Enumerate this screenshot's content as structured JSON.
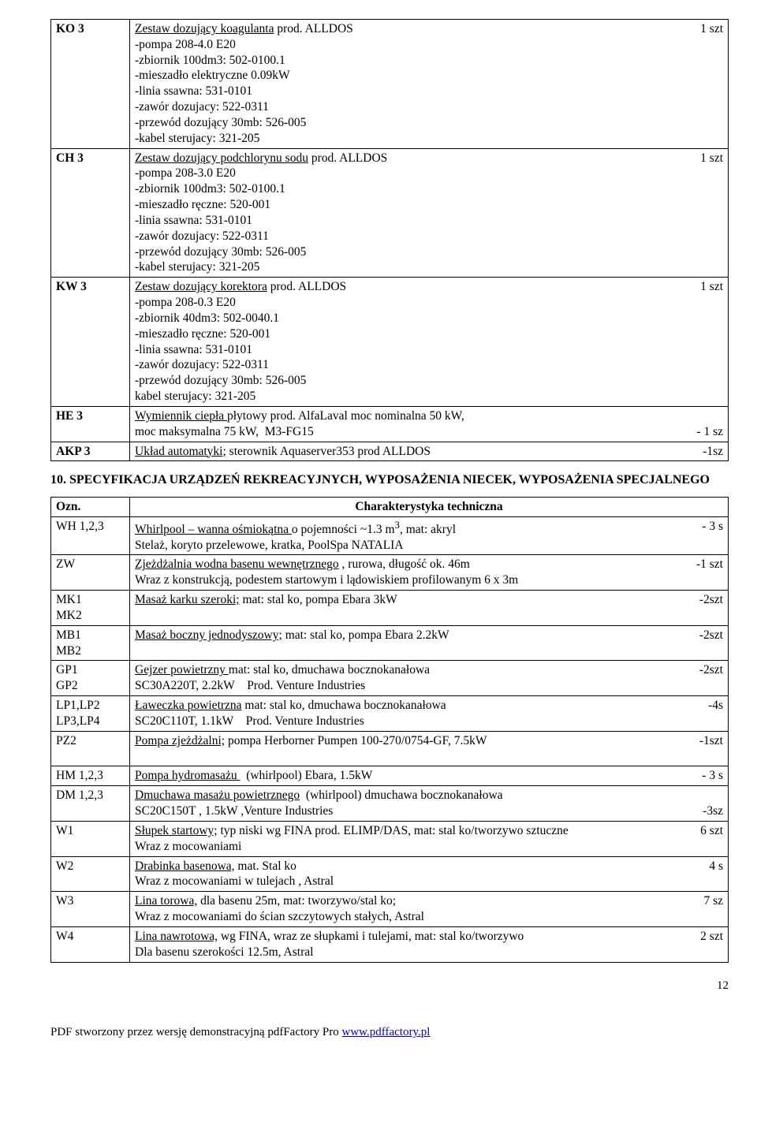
{
  "tbl1": [
    {
      "ozn": "KO 3",
      "html": "<span class='u'>Zestaw dozujący koagulanta</span> prod. ALLDOS <span class='rt'>1 szt</span><br>-pompa 208-4.0 E20<br>-zbiornik 100dm3: 502-0100.1<br>-mieszadło elektryczne 0.09kW<br>-linia ssawna: 531-0101<br>-zawór dozujacy: 522-0311<br>-przewód dozujący 30mb: 526-005<br>-kabel sterujacy: 321-205"
    },
    {
      "ozn": "CH 3",
      "html": "<span class='u'>Zestaw dozujący podchlorynu sodu</span> prod. ALLDOS <span class='rt'>1 szt</span><br>-pompa 208-3.0 E20<br>-zbiornik 100dm3: 502-0100.1<br>-mieszadło ręczne: 520-001<br>-linia ssawna: 531-0101<br>-zawór dozujacy: 522-0311<br>-przewód dozujący 30mb: 526-005<br>-kabel sterujacy: 321-205"
    },
    {
      "ozn": "KW 3",
      "html": "<span class='u'>Zestaw dozujący korektora</span> prod. ALLDOS <span class='rt'>1 szt</span><br>-pompa 208-0.3 E20<br>-zbiornik 40dm3: 502-0040.1<br>-mieszadło ręczne: 520-001<br>-linia ssawna: 531-0101<br>-zawór dozujacy: 522-0311<br>-przewód dozujący 30mb: 526-005<br>kabel sterujacy: 321-205"
    },
    {
      "ozn": "HE 3",
      "html": "<span class='u'>Wymiennik ciepła </span> płytowy prod. AlfaLaval moc nominalna 50 kW,<br>moc maksymalna 75 kW,&nbsp; M3-FG15 <span class='rt'>- 1 sz</span>"
    },
    {
      "ozn": "AKP 3",
      "html": "<span class='u'>Układ automatyki;</span> sterownik Aquaserver353 prod ALLDOS <span class='rt'>-1sz</span>"
    }
  ],
  "section_title": "10. SPECYFIKACJA URZĄDZEŃ REKREACYJNYCH, WYPOSAŻENIA NIECEK, WYPOSAŻENIA SPECJALNEGO",
  "tbl2_header": {
    "ozn": "Ozn.",
    "desc": "Charakterystyka techniczna"
  },
  "tbl2": [
    {
      "ozn": "WH 1,2,3",
      "html": "<span class='u'>Whirlpool – wanna ośmiokątna </span>o pojemności ~1.3 m<sup>3</sup>, mat: akryl <span class='rt'>- 3 s</span><br>Stelaż, koryto przelewowe, kratka, PoolSpa NATALIA"
    },
    {
      "ozn": "ZW",
      "html": "<span class='u'>Zjeżdżalnia wodna basenu wewnętrznego</span> , rurowa, długość ok. 46m <span class='rt'>-1 szt</span><br>Wraz z konstrukcją, podestem startowym i lądowiskiem profilowanym 6 x 3m"
    },
    {
      "ozn": "MK1<br>MK2",
      "html": "<span class='u'>Masaż  karku szeroki;</span> mat: stal ko, pompa Ebara  3kW <span class='rt'>-2szt</span>"
    },
    {
      "ozn": "MB1<br>MB2",
      "html": "<span class='u'>Masaż boczny jednodyszowy;</span> mat: stal ko, pompa Ebara 2.2kW <span class='rt'>-2szt</span>"
    },
    {
      "ozn": "GP1<br>GP2",
      "html": "<span class='u'>Gejzer powietrzny </span> mat: stal ko, dmuchawa bocznokanałowa <span class='rt'>-2szt</span><br>SC30A220T, 2.2kW&nbsp;&nbsp;&nbsp; Prod. Venture Industries"
    },
    {
      "ozn": "LP1,LP2<br>LP3,LP4",
      "html": "<span class='u'>Ławeczka powietrzna</span> mat: stal ko, dmuchawa bocznokanałowa <span class='rt'>-4s</span><br>SC20C110T, 1.1kW&nbsp;&nbsp;&nbsp; Prod. Venture Industries"
    },
    {
      "ozn": "PZ2",
      "html": "<span class='u'>Pompa zjeżdżalni;</span> pompa Herborner Pumpen 100-270/0754-GF, 7.5kW <span class='rt'>-1szt</span><br>&nbsp;"
    },
    {
      "ozn": "HM 1,2,3",
      "html": "<span class='u'>Pompa hydromasażu </span>&nbsp; (whirlpool) Ebara, 1.5kW <span class='rt'>- 3 s</span>"
    },
    {
      "ozn": "DM 1,2,3",
      "html": "<span class='u'>Dmuchawa masażu powietrznego</span>&nbsp; (whirlpool) dmuchawa bocznokanałowa<br>SC20C150T , 1.5kW ,Venture Industries <span class='rt'>-3sz</span>"
    },
    {
      "ozn": "W1",
      "html": "<span class='u'>Słupek startowy;</span> typ niski wg FINA prod. ELIMP/DAS, mat: stal ko/tworzywo sztuczne <span class='rt'>6 szt</span><br>Wraz z mocowaniami"
    },
    {
      "ozn": "W2",
      "html": "<span class='u'>Drabinka basenowa,</span> mat. Stal ko <span class='rt'>4 s</span><br>Wraz z mocowaniami w tulejach , Astral"
    },
    {
      "ozn": "W3",
      "html": "<span class='u'>Lina torowa,</span> dla basenu 25m, mat: tworzywo/stal ko; <span class='rt'>7 sz</span><br>Wraz z mocowaniami do ścian szczytowych stałych, Astral"
    },
    {
      "ozn": "W4",
      "html": "<span class='u'>Lina nawrotowa,</span> wg FINA, wraz ze słupkami i tulejami, mat: stal ko/tworzywo <span class='rt'>2 szt</span><br>Dla basenu szerokości 12.5m, Astral"
    }
  ],
  "page_num": "12",
  "footer_text": "PDF stworzony przez wersję demonstracyjną pdfFactory Pro ",
  "footer_link": "www.pdffactory.pl"
}
